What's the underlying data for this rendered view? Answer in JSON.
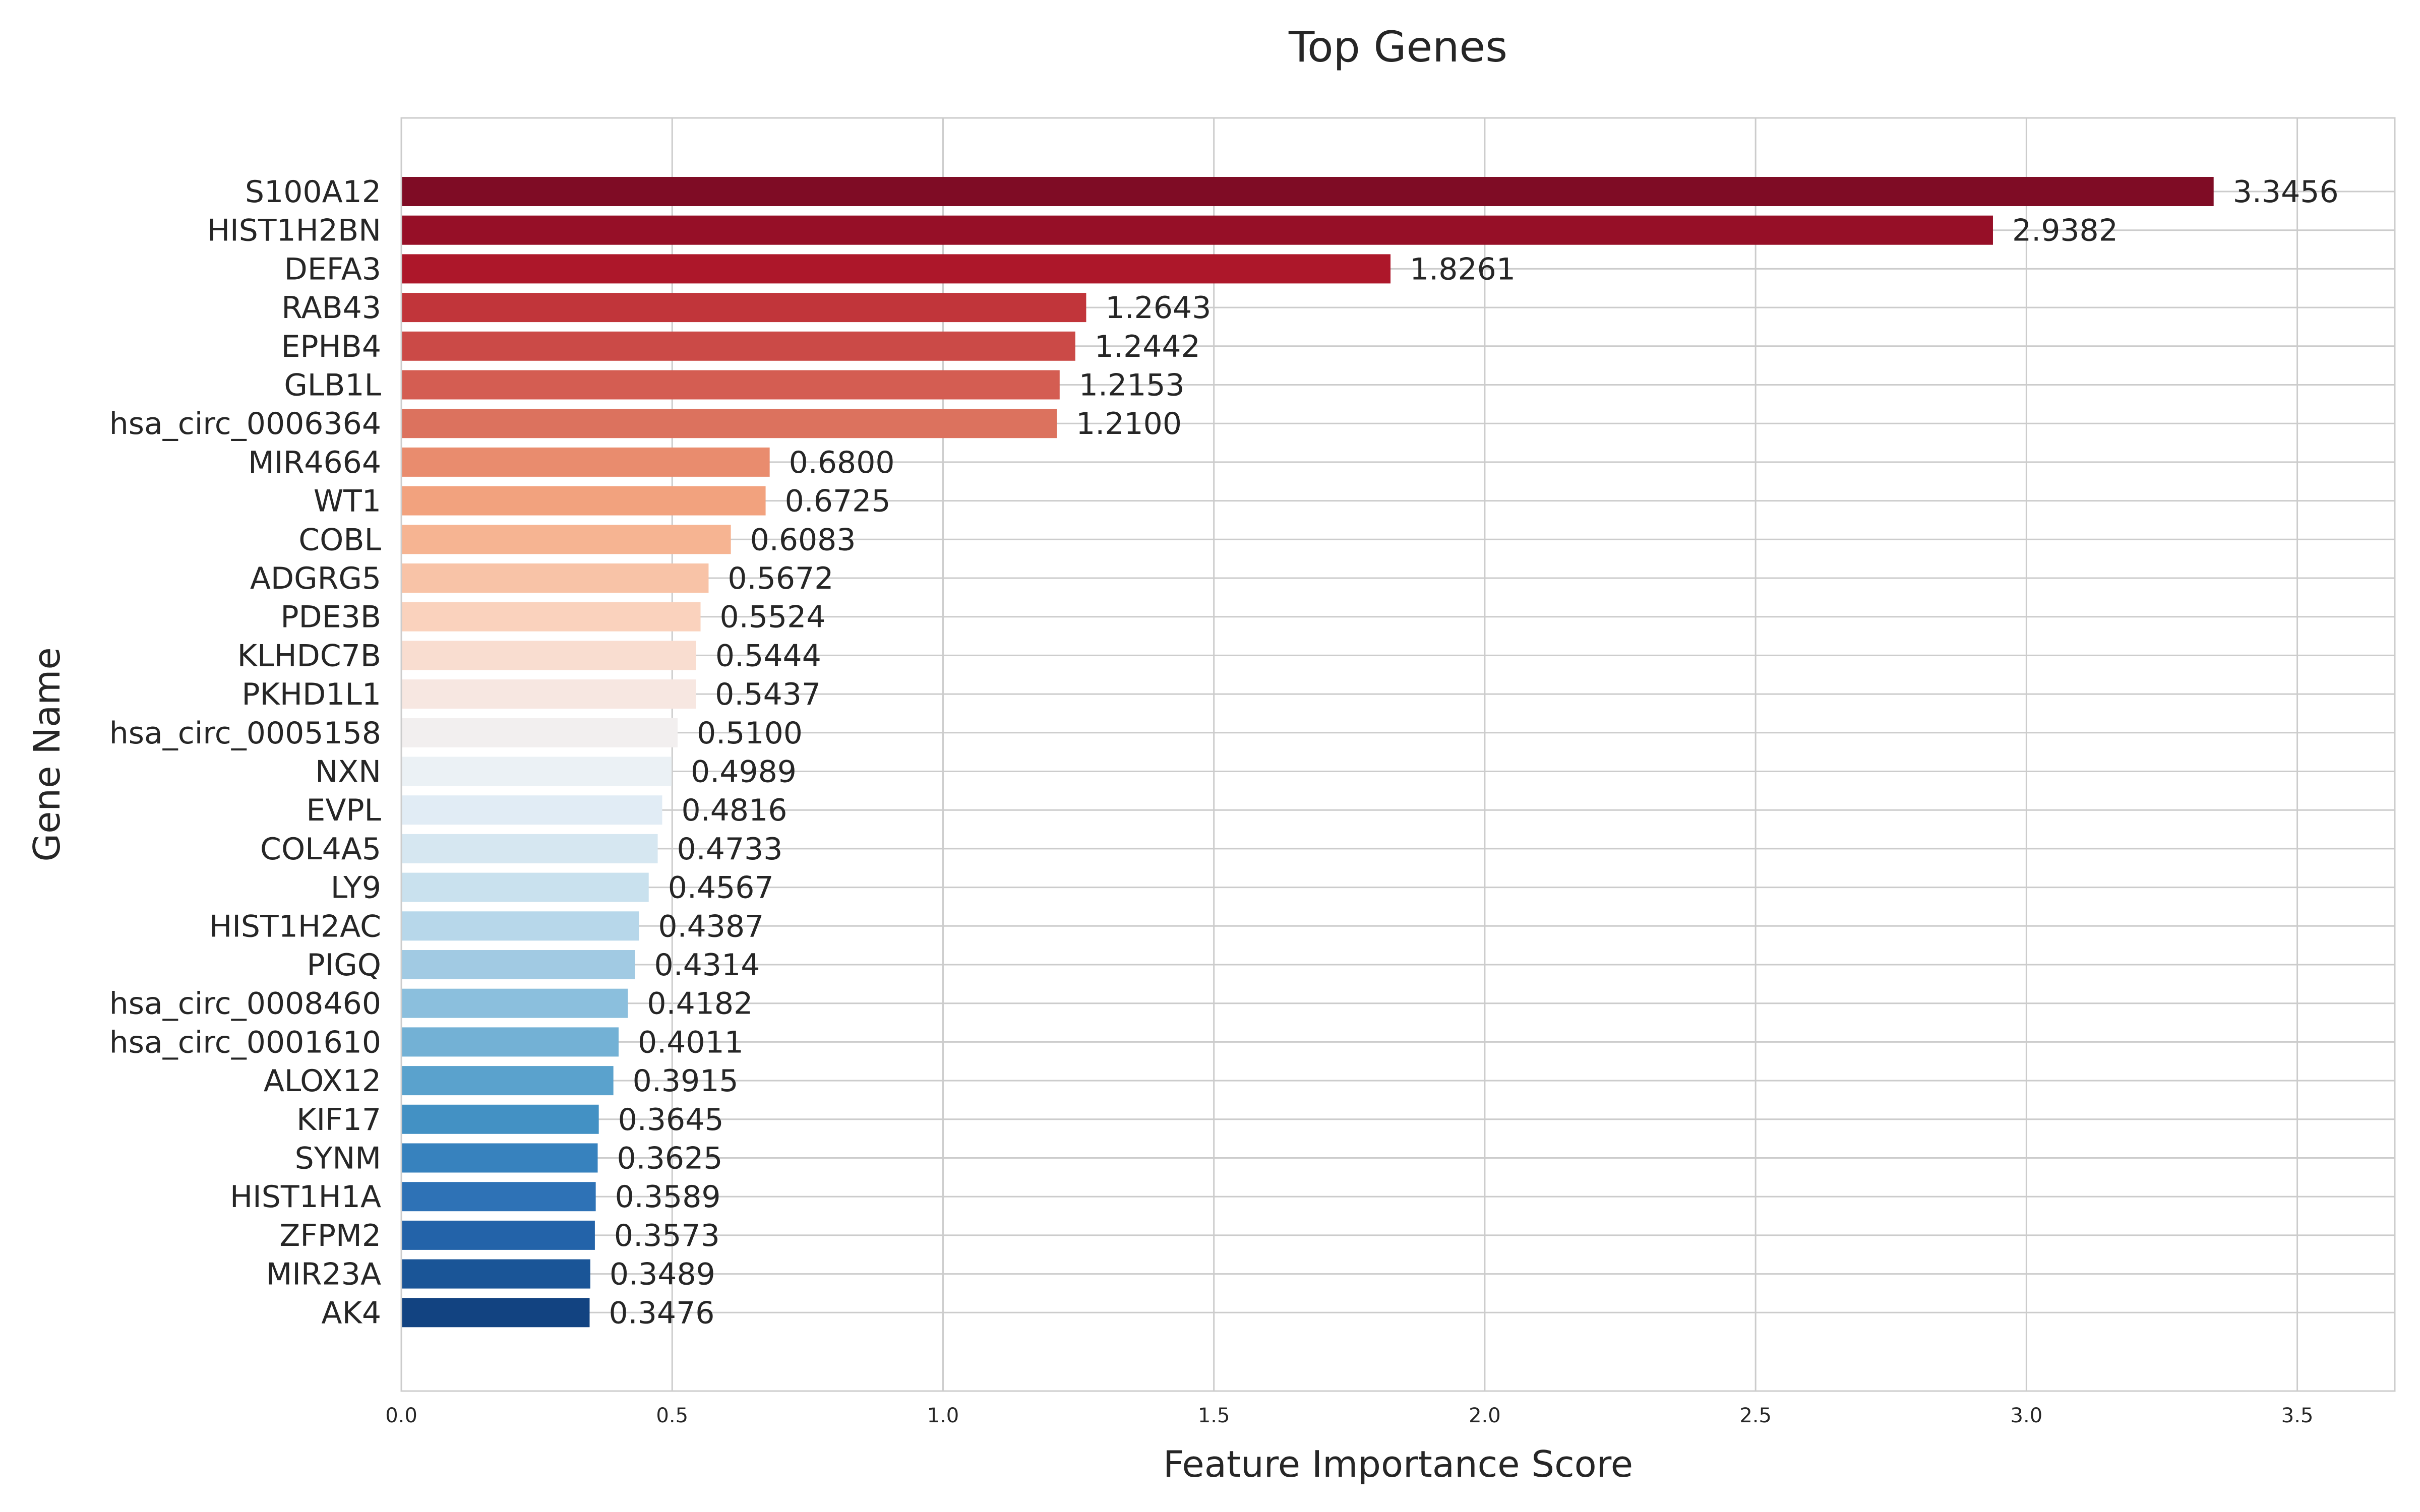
{
  "chart_data": {
    "type": "bar",
    "orientation": "horizontal",
    "title": "Top Genes",
    "xlabel": "Feature Importance Score",
    "ylabel": "Gene Name",
    "xlim": [
      0,
      3.68
    ],
    "xticks": [
      "0.0",
      "0.5",
      "1.0",
      "1.5",
      "2.0",
      "2.5",
      "3.0",
      "3.5"
    ],
    "grid": true,
    "legend": "none",
    "categories": [
      "S100A12",
      "HIST1H2BN",
      "DEFA3",
      "RAB43",
      "EPHB4",
      "GLB1L",
      "hsa_circ_0006364",
      "MIR4664",
      "WT1",
      "COBL",
      "ADGRG5",
      "PDE3B",
      "KLHDC7B",
      "PKHD1L1",
      "hsa_circ_0005158",
      "NXN",
      "EVPL",
      "COL4A5",
      "LY9",
      "HIST1H2AC",
      "PIGQ",
      "hsa_circ_0008460",
      "hsa_circ_0001610",
      "ALOX12",
      "KIF17",
      "SYNM",
      "HIST1H1A",
      "ZFPM2",
      "MIR23A",
      "AK4"
    ],
    "values": [
      3.3456,
      2.9382,
      1.8261,
      1.2643,
      1.2442,
      1.2153,
      1.21,
      0.68,
      0.6725,
      0.6083,
      0.5672,
      0.5524,
      0.5444,
      0.5437,
      0.51,
      0.4989,
      0.4816,
      0.4733,
      0.4567,
      0.4387,
      0.4314,
      0.4182,
      0.4011,
      0.3915,
      0.3645,
      0.3625,
      0.3589,
      0.3573,
      0.3489,
      0.3476
    ],
    "value_labels": [
      "3.3456",
      "2.9382",
      "1.8261",
      "1.2643",
      "1.2442",
      "1.2153",
      "1.2100",
      "0.6800",
      "0.6725",
      "0.6083",
      "0.5672",
      "0.5524",
      "0.5444",
      "0.5437",
      "0.5100",
      "0.4989",
      "0.4816",
      "0.4733",
      "0.4567",
      "0.4387",
      "0.4314",
      "0.4182",
      "0.4011",
      "0.3915",
      "0.3645",
      "0.3625",
      "0.3589",
      "0.3573",
      "0.3489",
      "0.3476"
    ],
    "colors": [
      "#7f0c25",
      "#960f27",
      "#ad172a",
      "#c1353a",
      "#cb4a47",
      "#d45d52",
      "#dc725e",
      "#e98c6e",
      "#f2a27e",
      "#f6b492",
      "#f8c3a7",
      "#fad2bd",
      "#f9ddd0",
      "#f7e7e1",
      "#f2efef",
      "#ebf1f5",
      "#e1ecf5",
      "#d6e7f1",
      "#c9e1ee",
      "#b7d7ea",
      "#a1cae3",
      "#8bbfdd",
      "#73b1d5",
      "#5aa2cd",
      "#4391c4",
      "#3782be",
      "#2e72b6",
      "#2363a9",
      "#1a5597",
      "#124381"
    ]
  }
}
